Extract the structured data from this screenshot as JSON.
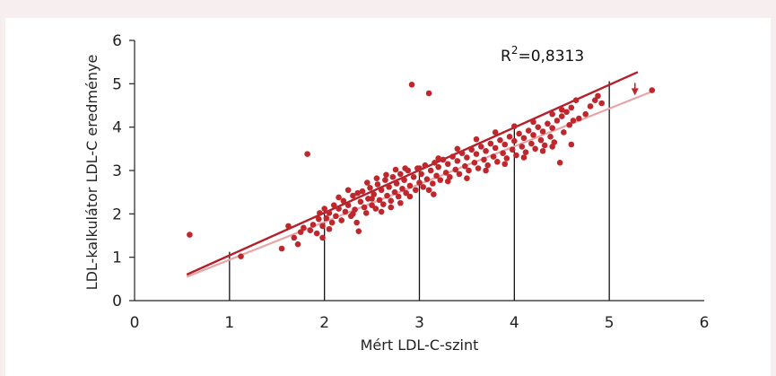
{
  "chart_data": {
    "type": "scatter",
    "title": "",
    "xlabel": "Mért LDL-C-szint",
    "ylabel": "LDL-kalkulátor LDL-C eredménye",
    "xlim": [
      0,
      6
    ],
    "ylim": [
      0,
      6
    ],
    "x_ticks": [
      "0",
      "1",
      "2",
      "3",
      "4",
      "5",
      "6"
    ],
    "y_ticks": [
      "0",
      "1",
      "2",
      "3",
      "4",
      "5",
      "6"
    ],
    "annotation": {
      "r2_prefix": "R",
      "r2_sup": "2",
      "r2_value": "=0,8313"
    },
    "colors": {
      "points": "#c0272d",
      "fit_line": "#b3202a",
      "identity_line": "#e8a5a8",
      "reference_lines": "#111111",
      "arrow": "#c0272d"
    },
    "lines": {
      "fit": {
        "x": [
          0.55,
          5.3
        ],
        "y": [
          0.6,
          5.27
        ]
      },
      "identity": {
        "x": [
          0.55,
          5.45
        ],
        "y": [
          0.55,
          4.82
        ]
      }
    },
    "reference_lines_at": [
      1,
      2,
      3,
      4,
      5
    ],
    "arrow": {
      "x": 5.27,
      "y_from": 5.02,
      "y_to": 4.73
    },
    "points": [
      [
        0.58,
        1.52
      ],
      [
        1.12,
        1.02
      ],
      [
        1.55,
        1.2
      ],
      [
        1.62,
        1.72
      ],
      [
        1.68,
        1.45
      ],
      [
        1.72,
        1.3
      ],
      [
        1.75,
        1.58
      ],
      [
        1.78,
        1.68
      ],
      [
        1.82,
        3.38
      ],
      [
        1.85,
        1.62
      ],
      [
        1.88,
        1.75
      ],
      [
        1.92,
        1.55
      ],
      [
        1.94,
        1.88
      ],
      [
        1.95,
        2.02
      ],
      [
        1.98,
        1.72
      ],
      [
        2.0,
        2.12
      ],
      [
        2.02,
        1.9
      ],
      [
        2.05,
        2.02
      ],
      [
        2.08,
        1.8
      ],
      [
        2.1,
        2.2
      ],
      [
        2.12,
        1.95
      ],
      [
        2.15,
        2.12
      ],
      [
        2.18,
        1.85
      ],
      [
        2.2,
        2.3
      ],
      [
        2.22,
        2.05
      ],
      [
        2.25,
        2.2
      ],
      [
        2.28,
        1.95
      ],
      [
        2.3,
        2.42
      ],
      [
        2.32,
        2.1
      ],
      [
        2.34,
        1.8
      ],
      [
        2.36,
        1.6
      ],
      [
        2.38,
        2.28
      ],
      [
        2.4,
        2.52
      ],
      [
        2.42,
        2.15
      ],
      [
        2.44,
        2.02
      ],
      [
        2.46,
        2.35
      ],
      [
        2.48,
        2.6
      ],
      [
        2.5,
        2.2
      ],
      [
        2.52,
        2.45
      ],
      [
        2.54,
        2.12
      ],
      [
        2.56,
        2.68
      ],
      [
        2.58,
        2.32
      ],
      [
        2.6,
        2.55
      ],
      [
        2.62,
        2.22
      ],
      [
        2.64,
        2.78
      ],
      [
        2.66,
        2.42
      ],
      [
        2.68,
        2.62
      ],
      [
        2.7,
        2.3
      ],
      [
        2.72,
        2.85
      ],
      [
        2.74,
        2.5
      ],
      [
        2.76,
        2.7
      ],
      [
        2.78,
        2.4
      ],
      [
        2.8,
        2.92
      ],
      [
        2.82,
        2.58
      ],
      [
        2.84,
        2.78
      ],
      [
        2.86,
        2.48
      ],
      [
        2.88,
        3.0
      ],
      [
        2.9,
        2.65
      ],
      [
        2.92,
        4.98
      ],
      [
        2.94,
        2.85
      ],
      [
        2.96,
        2.55
      ],
      [
        2.98,
        3.05
      ],
      [
        3.0,
        2.72
      ],
      [
        3.02,
        2.92
      ],
      [
        3.04,
        2.62
      ],
      [
        3.06,
        3.12
      ],
      [
        3.08,
        2.8
      ],
      [
        3.1,
        4.78
      ],
      [
        3.12,
        3.0
      ],
      [
        3.14,
        2.7
      ],
      [
        3.16,
        3.18
      ],
      [
        3.18,
        2.88
      ],
      [
        3.2,
        3.08
      ],
      [
        3.22,
        2.78
      ],
      [
        3.25,
        3.25
      ],
      [
        3.28,
        2.95
      ],
      [
        3.3,
        3.15
      ],
      [
        3.32,
        2.85
      ],
      [
        3.35,
        3.32
      ],
      [
        3.38,
        3.02
      ],
      [
        3.4,
        3.22
      ],
      [
        3.42,
        2.92
      ],
      [
        3.45,
        3.4
      ],
      [
        3.48,
        3.1
      ],
      [
        3.5,
        3.3
      ],
      [
        3.52,
        3.0
      ],
      [
        3.55,
        3.48
      ],
      [
        3.58,
        3.18
      ],
      [
        3.6,
        3.38
      ],
      [
        3.62,
        3.05
      ],
      [
        3.65,
        3.55
      ],
      [
        3.68,
        3.25
      ],
      [
        3.7,
        3.45
      ],
      [
        3.72,
        3.12
      ],
      [
        3.75,
        3.62
      ],
      [
        3.78,
        3.32
      ],
      [
        3.8,
        3.52
      ],
      [
        3.82,
        3.2
      ],
      [
        3.85,
        3.7
      ],
      [
        3.88,
        3.4
      ],
      [
        3.9,
        3.6
      ],
      [
        3.92,
        3.28
      ],
      [
        3.95,
        3.78
      ],
      [
        3.98,
        3.48
      ],
      [
        4.0,
        3.68
      ],
      [
        4.02,
        3.35
      ],
      [
        4.05,
        3.85
      ],
      [
        4.08,
        3.55
      ],
      [
        4.1,
        3.75
      ],
      [
        4.12,
        3.42
      ],
      [
        4.15,
        3.92
      ],
      [
        4.18,
        3.62
      ],
      [
        4.2,
        3.82
      ],
      [
        4.22,
        3.5
      ],
      [
        4.25,
        4.0
      ],
      [
        4.28,
        3.7
      ],
      [
        4.3,
        3.9
      ],
      [
        4.32,
        3.58
      ],
      [
        4.35,
        4.08
      ],
      [
        4.38,
        3.78
      ],
      [
        4.4,
        3.98
      ],
      [
        4.42,
        3.65
      ],
      [
        4.45,
        4.15
      ],
      [
        4.48,
        3.18
      ],
      [
        4.5,
        4.25
      ],
      [
        4.52,
        3.88
      ],
      [
        4.55,
        4.35
      ],
      [
        4.58,
        4.05
      ],
      [
        4.6,
        4.45
      ],
      [
        4.62,
        4.15
      ],
      [
        4.65,
        4.62
      ],
      [
        4.68,
        4.2
      ],
      [
        4.75,
        4.3
      ],
      [
        4.8,
        4.48
      ],
      [
        4.85,
        4.62
      ],
      [
        4.88,
        4.72
      ],
      [
        4.92,
        4.55
      ],
      [
        5.45,
        4.85
      ],
      [
        2.15,
        2.38
      ],
      [
        2.25,
        2.55
      ],
      [
        2.35,
        2.48
      ],
      [
        2.45,
        2.72
      ],
      [
        2.55,
        2.82
      ],
      [
        2.65,
        2.9
      ],
      [
        2.75,
        3.02
      ],
      [
        2.85,
        3.05
      ],
      [
        3.0,
        3.05
      ],
      [
        3.2,
        3.28
      ],
      [
        3.4,
        3.5
      ],
      [
        3.6,
        3.72
      ],
      [
        3.8,
        3.88
      ],
      [
        4.0,
        4.02
      ],
      [
        4.2,
        4.12
      ],
      [
        4.4,
        4.3
      ],
      [
        4.5,
        4.4
      ],
      [
        2.3,
        2.0
      ],
      [
        2.5,
        2.35
      ],
      [
        2.7,
        2.15
      ],
      [
        2.9,
        2.4
      ],
      [
        3.1,
        2.55
      ],
      [
        3.3,
        2.75
      ],
      [
        3.5,
        2.82
      ],
      [
        3.7,
        3.0
      ],
      [
        3.9,
        3.15
      ],
      [
        4.1,
        3.3
      ],
      [
        4.3,
        3.45
      ],
      [
        4.4,
        3.55
      ],
      [
        4.6,
        3.6
      ],
      [
        1.98,
        1.45
      ],
      [
        2.05,
        1.65
      ],
      [
        2.6,
        2.05
      ],
      [
        2.8,
        2.25
      ],
      [
        3.15,
        2.45
      ]
    ]
  }
}
